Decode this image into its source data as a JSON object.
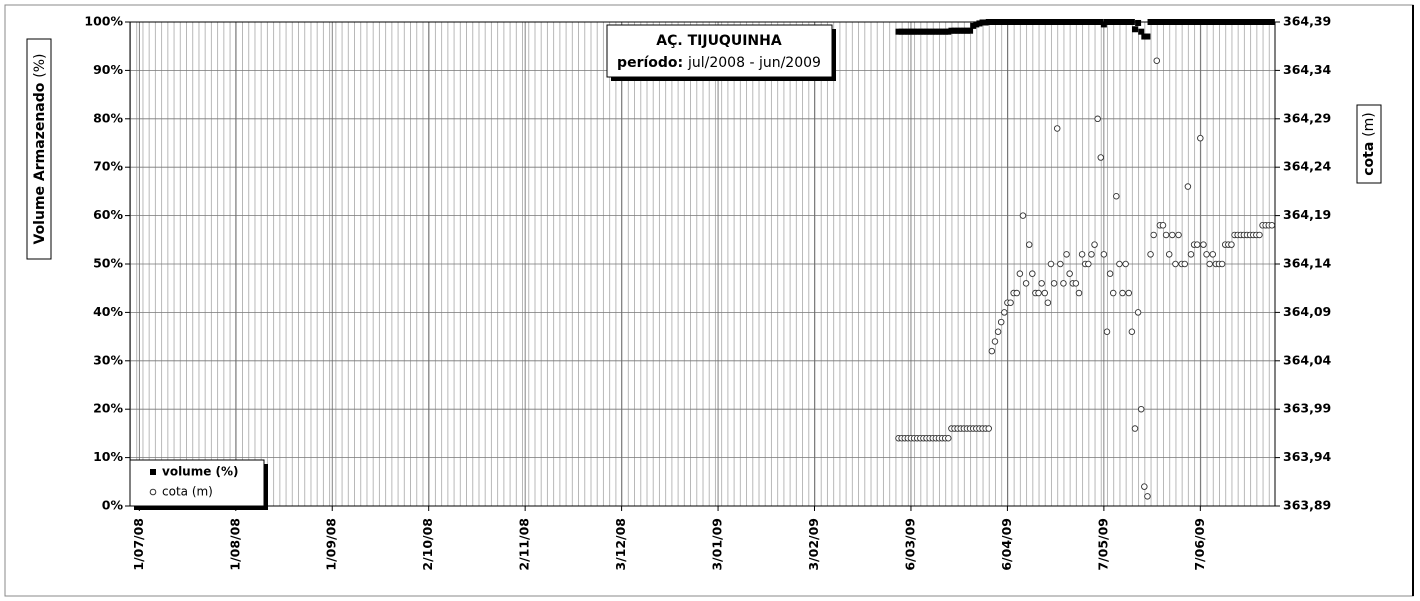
{
  "chart_data": {
    "type": "scatter",
    "title": "AÇ. TIJUQUINHA",
    "subtitle_label": "período:",
    "subtitle_value": "jul/2008 - jun/2009",
    "y_label": "Volume Armazenado",
    "y_label_unit": "(%)",
    "y2_label": "cota",
    "y2_label_unit": "(m)",
    "legend": "lower left",
    "grid": true,
    "xlim": [
      "2008-06-28",
      "2009-07-01"
    ],
    "xticks": [
      {
        "value": "2008-07-01",
        "label": "1/07/08"
      },
      {
        "value": "2008-08-01",
        "label": "1/08/08"
      },
      {
        "value": "2008-09-01",
        "label": "1/09/08"
      },
      {
        "value": "2008-10-02",
        "label": "2/10/08"
      },
      {
        "value": "2008-11-02",
        "label": "2/11/08"
      },
      {
        "value": "2008-12-03",
        "label": "3/12/08"
      },
      {
        "value": "2009-01-03",
        "label": "3/01/09"
      },
      {
        "value": "2009-02-03",
        "label": "3/02/09"
      },
      {
        "value": "2009-03-06",
        "label": "6/03/09"
      },
      {
        "value": "2009-04-06",
        "label": "6/04/09"
      },
      {
        "value": "2009-05-07",
        "label": "7/05/09"
      },
      {
        "value": "2009-06-07",
        "label": "7/06/09"
      }
    ],
    "ylim": [
      0,
      100
    ],
    "yticks": [
      {
        "value": 0,
        "label": "0%"
      },
      {
        "value": 10,
        "label": "10%"
      },
      {
        "value": 20,
        "label": "20%"
      },
      {
        "value": 30,
        "label": "30%"
      },
      {
        "value": 40,
        "label": "40%"
      },
      {
        "value": 50,
        "label": "50%"
      },
      {
        "value": 60,
        "label": "60%"
      },
      {
        "value": 70,
        "label": "70%"
      },
      {
        "value": 80,
        "label": "80%"
      },
      {
        "value": 90,
        "label": "90%"
      },
      {
        "value": 100,
        "label": "100%"
      }
    ],
    "y2lim": [
      363.89,
      364.39
    ],
    "y2ticks": [
      {
        "value": 363.89,
        "label": "363,89"
      },
      {
        "value": 363.94,
        "label": "363,94"
      },
      {
        "value": 363.99,
        "label": "363,99"
      },
      {
        "value": 364.04,
        "label": "364,04"
      },
      {
        "value": 364.09,
        "label": "364,09"
      },
      {
        "value": 364.14,
        "label": "364,14"
      },
      {
        "value": 364.19,
        "label": "364,19"
      },
      {
        "value": 364.24,
        "label": "364,24"
      },
      {
        "value": 364.29,
        "label": "364,29"
      },
      {
        "value": 364.34,
        "label": "364,34"
      },
      {
        "value": 364.39,
        "label": "364,39"
      }
    ],
    "x": [
      "2009-03-02",
      "2009-03-03",
      "2009-03-04",
      "2009-03-05",
      "2009-03-06",
      "2009-03-07",
      "2009-03-08",
      "2009-03-09",
      "2009-03-10",
      "2009-03-11",
      "2009-03-12",
      "2009-03-13",
      "2009-03-14",
      "2009-03-15",
      "2009-03-16",
      "2009-03-17",
      "2009-03-18",
      "2009-03-19",
      "2009-03-20",
      "2009-03-21",
      "2009-03-22",
      "2009-03-23",
      "2009-03-24",
      "2009-03-25",
      "2009-03-26",
      "2009-03-27",
      "2009-03-28",
      "2009-03-29",
      "2009-03-30",
      "2009-03-31",
      "2009-04-01",
      "2009-04-02",
      "2009-04-03",
      "2009-04-04",
      "2009-04-05",
      "2009-04-06",
      "2009-04-07",
      "2009-04-08",
      "2009-04-09",
      "2009-04-10",
      "2009-04-11",
      "2009-04-12",
      "2009-04-13",
      "2009-04-14",
      "2009-04-15",
      "2009-04-16",
      "2009-04-17",
      "2009-04-18",
      "2009-04-19",
      "2009-04-20",
      "2009-04-21",
      "2009-04-22",
      "2009-04-23",
      "2009-04-24",
      "2009-04-25",
      "2009-04-26",
      "2009-04-27",
      "2009-04-28",
      "2009-04-29",
      "2009-04-30",
      "2009-05-01",
      "2009-05-02",
      "2009-05-03",
      "2009-05-04",
      "2009-05-05",
      "2009-05-06",
      "2009-05-07",
      "2009-05-08",
      "2009-05-09",
      "2009-05-10",
      "2009-05-11",
      "2009-05-12",
      "2009-05-13",
      "2009-05-14",
      "2009-05-15",
      "2009-05-16",
      "2009-05-17",
      "2009-05-18",
      "2009-05-19",
      "2009-05-20",
      "2009-05-21",
      "2009-05-22",
      "2009-05-23",
      "2009-05-24",
      "2009-05-25",
      "2009-05-26",
      "2009-05-27",
      "2009-05-28",
      "2009-05-29",
      "2009-05-30",
      "2009-05-31",
      "2009-06-01",
      "2009-06-02",
      "2009-06-03",
      "2009-06-04",
      "2009-06-05",
      "2009-06-06",
      "2009-06-07",
      "2009-06-08",
      "2009-06-09",
      "2009-06-10",
      "2009-06-11",
      "2009-06-12",
      "2009-06-13",
      "2009-06-14",
      "2009-06-15",
      "2009-06-16",
      "2009-06-17",
      "2009-06-18",
      "2009-06-19",
      "2009-06-20",
      "2009-06-21",
      "2009-06-22",
      "2009-06-23",
      "2009-06-24",
      "2009-06-25",
      "2009-06-26",
      "2009-06-27",
      "2009-06-28",
      "2009-06-29",
      "2009-06-30"
    ],
    "series": [
      {
        "name": "volume (%)",
        "color": "#000000",
        "marker": "square",
        "axis": "y",
        "values": [
          98,
          98,
          98,
          98,
          98,
          98,
          98,
          98,
          98,
          98,
          98,
          98,
          98,
          98,
          98,
          98,
          98,
          98.2,
          98.2,
          98.2,
          98.2,
          98.2,
          98.2,
          98.2,
          99.2,
          99.5,
          99.7,
          99.9,
          99.9,
          100,
          100,
          100,
          100,
          100,
          100,
          100,
          100,
          100,
          100,
          100,
          100,
          100,
          100,
          100,
          100,
          100,
          100,
          100,
          100,
          100,
          100,
          100,
          100,
          100,
          100,
          100,
          100,
          100,
          100,
          100,
          100,
          100,
          100,
          100,
          100,
          100,
          99.5,
          100,
          100,
          100,
          100,
          100,
          100,
          100,
          100,
          100,
          98.5,
          99.8,
          98,
          97,
          97,
          100,
          100,
          100,
          100,
          100,
          100,
          100,
          100,
          100,
          100,
          100,
          100,
          100,
          100,
          100,
          100,
          100,
          100,
          100,
          100,
          100,
          100,
          100,
          100,
          100,
          100,
          100,
          100,
          100,
          100,
          100,
          100,
          100,
          100,
          100,
          100,
          100,
          100,
          100,
          100
        ]
      },
      {
        "name": "cota (m)",
        "color": "#333333",
        "marker": "circle",
        "axis": "y2",
        "values": [
          363.96,
          363.96,
          363.96,
          363.96,
          363.96,
          363.96,
          363.96,
          363.96,
          363.96,
          363.96,
          363.96,
          363.96,
          363.96,
          363.96,
          363.96,
          363.96,
          363.96,
          363.97,
          363.97,
          363.97,
          363.97,
          363.97,
          363.97,
          363.97,
          363.97,
          363.97,
          363.97,
          363.97,
          363.97,
          363.97,
          364.05,
          364.06,
          364.07,
          364.08,
          364.09,
          364.1,
          364.1,
          364.11,
          364.11,
          364.13,
          364.19,
          364.12,
          364.16,
          364.13,
          364.11,
          364.11,
          364.12,
          364.11,
          364.1,
          364.14,
          364.12,
          364.28,
          364.14,
          364.12,
          364.15,
          364.13,
          364.12,
          364.12,
          364.11,
          364.15,
          364.14,
          364.14,
          364.15,
          364.16,
          364.29,
          364.25,
          364.15,
          364.07,
          364.13,
          364.11,
          364.21,
          364.14,
          364.11,
          364.14,
          364.11,
          364.07,
          363.97,
          364.09,
          363.99,
          363.91,
          363.9,
          364.15,
          364.17,
          364.35,
          364.18,
          364.18,
          364.17,
          364.15,
          364.17,
          364.14,
          364.17,
          364.14,
          364.14,
          364.22,
          364.15,
          364.16,
          364.16,
          364.27,
          364.16,
          364.15,
          364.14,
          364.15,
          364.14,
          364.14,
          364.14,
          364.16,
          364.16,
          364.16,
          364.17,
          364.17,
          364.17,
          364.17,
          364.17,
          364.17,
          364.17,
          364.17,
          364.17,
          364.18,
          364.18,
          364.18,
          364.18
        ]
      }
    ]
  }
}
